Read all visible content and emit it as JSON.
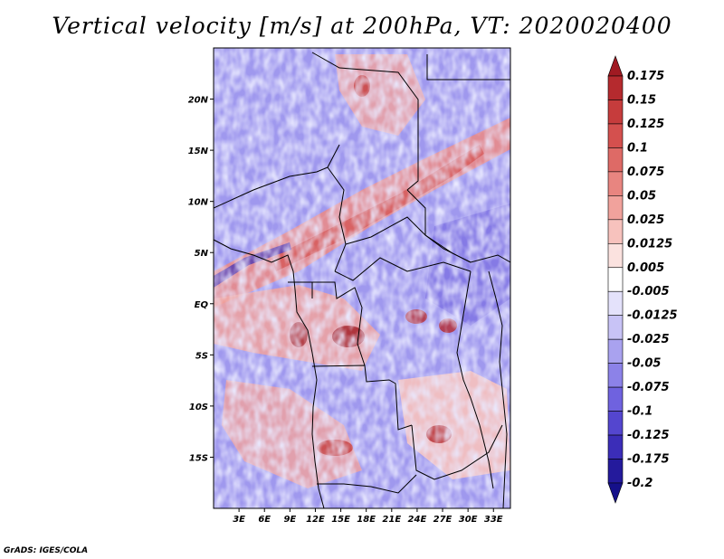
{
  "title": "Vertical velocity [m/s] at 200hPa, VT: 2020020400",
  "credit": "GrADS: IGES/COLA",
  "map": {
    "variable": "Vertical velocity",
    "units": "m/s",
    "level": "200hPa",
    "valid_time": "2020020400",
    "lon_range": [
      0,
      35
    ],
    "lat_range": [
      -20,
      25
    ],
    "lat_ticks": [
      {
        "value": 20,
        "label": "20N"
      },
      {
        "value": 15,
        "label": "15N"
      },
      {
        "value": 10,
        "label": "10N"
      },
      {
        "value": 5,
        "label": "5N"
      },
      {
        "value": 0,
        "label": "EQ"
      },
      {
        "value": -5,
        "label": "5S"
      },
      {
        "value": -10,
        "label": "10S"
      },
      {
        "value": -15,
        "label": "15S"
      }
    ],
    "lon_ticks": [
      {
        "value": 3,
        "label": "3E"
      },
      {
        "value": 6,
        "label": "6E"
      },
      {
        "value": 9,
        "label": "9E"
      },
      {
        "value": 12,
        "label": "12E"
      },
      {
        "value": 15,
        "label": "15E"
      },
      {
        "value": 18,
        "label": "18E"
      },
      {
        "value": 21,
        "label": "21E"
      },
      {
        "value": 24,
        "label": "24E"
      },
      {
        "value": 27,
        "label": "27E"
      },
      {
        "value": 30,
        "label": "30E"
      },
      {
        "value": 33,
        "label": "33E"
      }
    ]
  },
  "colorbar": {
    "levels": [
      "0.175",
      "0.15",
      "0.125",
      "0.1",
      "0.075",
      "0.05",
      "0.025",
      "0.0125",
      "0.005",
      "-0.005",
      "-0.0125",
      "-0.025",
      "-0.05",
      "-0.075",
      "-0.1",
      "-0.125",
      "-0.175",
      "-0.2"
    ],
    "colors": [
      "#a01a22",
      "#b52a2e",
      "#c63c3c",
      "#d4504e",
      "#de6a66",
      "#e88580",
      "#f1a29c",
      "#f7c2bd",
      "#fbe2df",
      "#ffffff",
      "#e4e2fb",
      "#c8c3f6",
      "#a9a2ef",
      "#8c82e8",
      "#6f62df",
      "#5446cf",
      "#3b2db8",
      "#241a9c",
      "#15108a"
    ]
  }
}
